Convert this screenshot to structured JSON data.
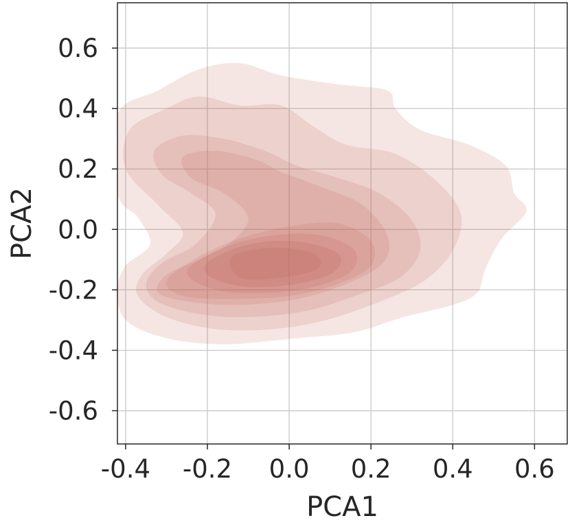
{
  "chart_data": {
    "type": "kde-contour",
    "xlabel": "PCA1",
    "ylabel": "PCA2",
    "xlim": [
      -0.42,
      0.68
    ],
    "ylim": [
      -0.71,
      0.75
    ],
    "xticks": [
      -0.4,
      -0.2,
      0.0,
      0.2,
      0.4,
      0.6
    ],
    "yticks": [
      -0.6,
      -0.4,
      -0.2,
      0.0,
      0.2,
      0.4,
      0.6
    ],
    "xtick_labels": [
      "-0.4",
      "-0.2",
      "0.0",
      "0.2",
      "0.4",
      "0.6"
    ],
    "ytick_labels": [
      "-0.6",
      "-0.4",
      "-0.2",
      "0.0",
      "0.2",
      "0.4",
      "0.6"
    ],
    "grid": true,
    "color": "#c0625a",
    "density_levels": [
      {
        "level": 1,
        "opacity": 0.16,
        "polygon": [
          [
            -0.42,
            0.38
          ],
          [
            -0.32,
            0.46
          ],
          [
            -0.22,
            0.53
          ],
          [
            -0.12,
            0.55
          ],
          [
            -0.02,
            0.51
          ],
          [
            0.12,
            0.48
          ],
          [
            0.24,
            0.46
          ],
          [
            0.26,
            0.4
          ],
          [
            0.32,
            0.33
          ],
          [
            0.44,
            0.28
          ],
          [
            0.53,
            0.21
          ],
          [
            0.55,
            0.12
          ],
          [
            0.58,
            0.06
          ],
          [
            0.52,
            -0.03
          ],
          [
            0.48,
            -0.13
          ],
          [
            0.46,
            -0.21
          ],
          [
            0.4,
            -0.25
          ],
          [
            0.28,
            -0.29
          ],
          [
            0.16,
            -0.34
          ],
          [
            0.02,
            -0.36
          ],
          [
            -0.16,
            -0.38
          ],
          [
            -0.3,
            -0.36
          ],
          [
            -0.4,
            -0.3
          ],
          [
            -0.42,
            -0.2
          ],
          [
            -0.4,
            -0.12
          ],
          [
            -0.34,
            -0.05
          ],
          [
            -0.37,
            0.04
          ],
          [
            -0.42,
            0.12
          ]
        ]
      },
      {
        "level": 2,
        "opacity": 0.16,
        "polygon": [
          [
            -0.39,
            0.33
          ],
          [
            -0.3,
            0.4
          ],
          [
            -0.22,
            0.44
          ],
          [
            -0.12,
            0.41
          ],
          [
            -0.02,
            0.41
          ],
          [
            0.06,
            0.34
          ],
          [
            0.14,
            0.28
          ],
          [
            0.26,
            0.25
          ],
          [
            0.36,
            0.16
          ],
          [
            0.42,
            0.05
          ],
          [
            0.4,
            -0.07
          ],
          [
            0.33,
            -0.17
          ],
          [
            0.22,
            -0.24
          ],
          [
            0.09,
            -0.3
          ],
          [
            -0.04,
            -0.33
          ],
          [
            -0.18,
            -0.33
          ],
          [
            -0.3,
            -0.29
          ],
          [
            -0.37,
            -0.22
          ],
          [
            -0.36,
            -0.15
          ],
          [
            -0.3,
            -0.08
          ],
          [
            -0.26,
            -0.01
          ],
          [
            -0.32,
            0.08
          ],
          [
            -0.4,
            0.2
          ]
        ]
      },
      {
        "level": 3,
        "opacity": 0.16,
        "polygon": [
          [
            -0.33,
            0.26
          ],
          [
            -0.26,
            0.31
          ],
          [
            -0.16,
            0.3
          ],
          [
            -0.06,
            0.26
          ],
          [
            0.02,
            0.21
          ],
          [
            0.12,
            0.17
          ],
          [
            0.22,
            0.12
          ],
          [
            0.3,
            0.03
          ],
          [
            0.32,
            -0.07
          ],
          [
            0.27,
            -0.16
          ],
          [
            0.16,
            -0.22
          ],
          [
            0.04,
            -0.27
          ],
          [
            -0.1,
            -0.29
          ],
          [
            -0.22,
            -0.28
          ],
          [
            -0.32,
            -0.24
          ],
          [
            -0.35,
            -0.18
          ],
          [
            -0.31,
            -0.11
          ],
          [
            -0.23,
            -0.05
          ],
          [
            -0.18,
            0.05
          ],
          [
            -0.24,
            0.12
          ],
          [
            -0.31,
            0.18
          ]
        ]
      },
      {
        "level": 4,
        "opacity": 0.16,
        "polygon": [
          [
            -0.26,
            0.24
          ],
          [
            -0.18,
            0.26
          ],
          [
            -0.08,
            0.23
          ],
          [
            -0.02,
            0.19
          ],
          [
            0.08,
            0.14
          ],
          [
            0.18,
            0.08
          ],
          [
            0.24,
            -0.02
          ],
          [
            0.23,
            -0.11
          ],
          [
            0.14,
            -0.18
          ],
          [
            0.02,
            -0.23
          ],
          [
            -0.12,
            -0.25
          ],
          [
            -0.24,
            -0.24
          ],
          [
            -0.32,
            -0.21
          ],
          [
            -0.3,
            -0.15
          ],
          [
            -0.22,
            -0.1
          ],
          [
            -0.14,
            -0.04
          ],
          [
            -0.1,
            0.04
          ],
          [
            -0.16,
            0.12
          ],
          [
            -0.24,
            0.17
          ]
        ]
      },
      {
        "level": 5,
        "opacity": 0.16,
        "polygon": [
          [
            -0.3,
            -0.17
          ],
          [
            -0.22,
            -0.09
          ],
          [
            -0.12,
            -0.03
          ],
          [
            0.0,
            0.01
          ],
          [
            0.12,
            0.02
          ],
          [
            0.2,
            -0.04
          ],
          [
            0.2,
            -0.12
          ],
          [
            0.12,
            -0.18
          ],
          [
            0.0,
            -0.22
          ],
          [
            -0.14,
            -0.23
          ],
          [
            -0.26,
            -0.22
          ]
        ]
      },
      {
        "level": 6,
        "opacity": 0.18,
        "polygon": [
          [
            -0.25,
            -0.14
          ],
          [
            -0.16,
            -0.06
          ],
          [
            -0.04,
            -0.02
          ],
          [
            0.08,
            -0.02
          ],
          [
            0.16,
            -0.07
          ],
          [
            0.15,
            -0.14
          ],
          [
            0.06,
            -0.19
          ],
          [
            -0.06,
            -0.21
          ],
          [
            -0.18,
            -0.2
          ]
        ]
      },
      {
        "level": 7,
        "opacity": 0.2,
        "polygon": [
          [
            -0.2,
            -0.11
          ],
          [
            -0.1,
            -0.05
          ],
          [
            0.02,
            -0.04
          ],
          [
            0.12,
            -0.08
          ],
          [
            0.11,
            -0.14
          ],
          [
            0.02,
            -0.18
          ],
          [
            -0.1,
            -0.19
          ],
          [
            -0.19,
            -0.16
          ]
        ]
      },
      {
        "level": 8,
        "opacity": 0.22,
        "polygon": [
          [
            -0.14,
            -0.09
          ],
          [
            -0.04,
            -0.06
          ],
          [
            0.06,
            -0.08
          ],
          [
            0.07,
            -0.13
          ],
          [
            -0.02,
            -0.16
          ],
          [
            -0.12,
            -0.16
          ]
        ]
      }
    ]
  }
}
